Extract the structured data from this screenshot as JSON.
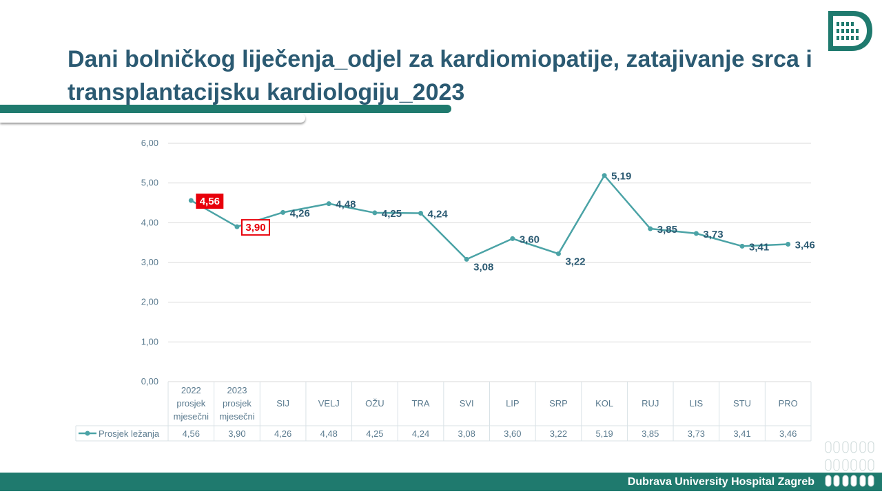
{
  "header": {
    "title": "Dani bolničkog liječenja_odjel za kardiomiopatije, zatajivanje srca i transplantacijsku kardiologiju_2023",
    "logo_icon": "hospital-heart-logo"
  },
  "footer": {
    "text": "Dubrava University Hospital Zagreb",
    "decoration_icon": "pill-dots-icon"
  },
  "colors": {
    "title": "#2b5a72",
    "brand": "#1f7a6e",
    "series": "#4ba3a6",
    "highlight": "#e8000b",
    "grid": "#d9d9d9",
    "axis_text": "#5b7b8f"
  },
  "chart_data": {
    "type": "line",
    "categories": [
      "2022 prosjek mjesečni",
      "2023 prosjek mjesečni",
      "SIJ",
      "VELJ",
      "OŽU",
      "TRA",
      "SVI",
      "LIP",
      "SRP",
      "KOL",
      "RUJ",
      "LIS",
      "STU",
      "PRO"
    ],
    "category_lines": [
      [
        "2022",
        "prosjek",
        "mjesečni"
      ],
      [
        "2023",
        "prosjek",
        "mjesečni"
      ],
      [
        "SIJ"
      ],
      [
        "VELJ"
      ],
      [
        "OŽU"
      ],
      [
        "TRA"
      ],
      [
        "SVI"
      ],
      [
        "LIP"
      ],
      [
        "SRP"
      ],
      [
        "KOL"
      ],
      [
        "RUJ"
      ],
      [
        "LIS"
      ],
      [
        "STU"
      ],
      [
        "PRO"
      ]
    ],
    "series": [
      {
        "name": "Prosjek ležanja",
        "values": [
          4.56,
          3.9,
          4.26,
          4.48,
          4.25,
          4.24,
          3.08,
          3.6,
          3.22,
          5.19,
          3.85,
          3.73,
          3.41,
          3.46
        ]
      }
    ],
    "data_labels": [
      "4,56",
      "3,90",
      "4,26",
      "4,48",
      "4,25",
      "4,24",
      "3,08",
      "3,60",
      "3,22",
      "5,19",
      "3,85",
      "3,73",
      "3,41",
      "3,46"
    ],
    "highlighted_points": [
      0,
      1
    ],
    "y_ticks": [
      "0,00",
      "1,00",
      "2,00",
      "3,00",
      "4,00",
      "5,00",
      "6,00"
    ],
    "ylim": [
      0,
      6
    ],
    "grid": true,
    "legend": "data table below chart",
    "title": "",
    "xlabel": "",
    "ylabel": ""
  }
}
